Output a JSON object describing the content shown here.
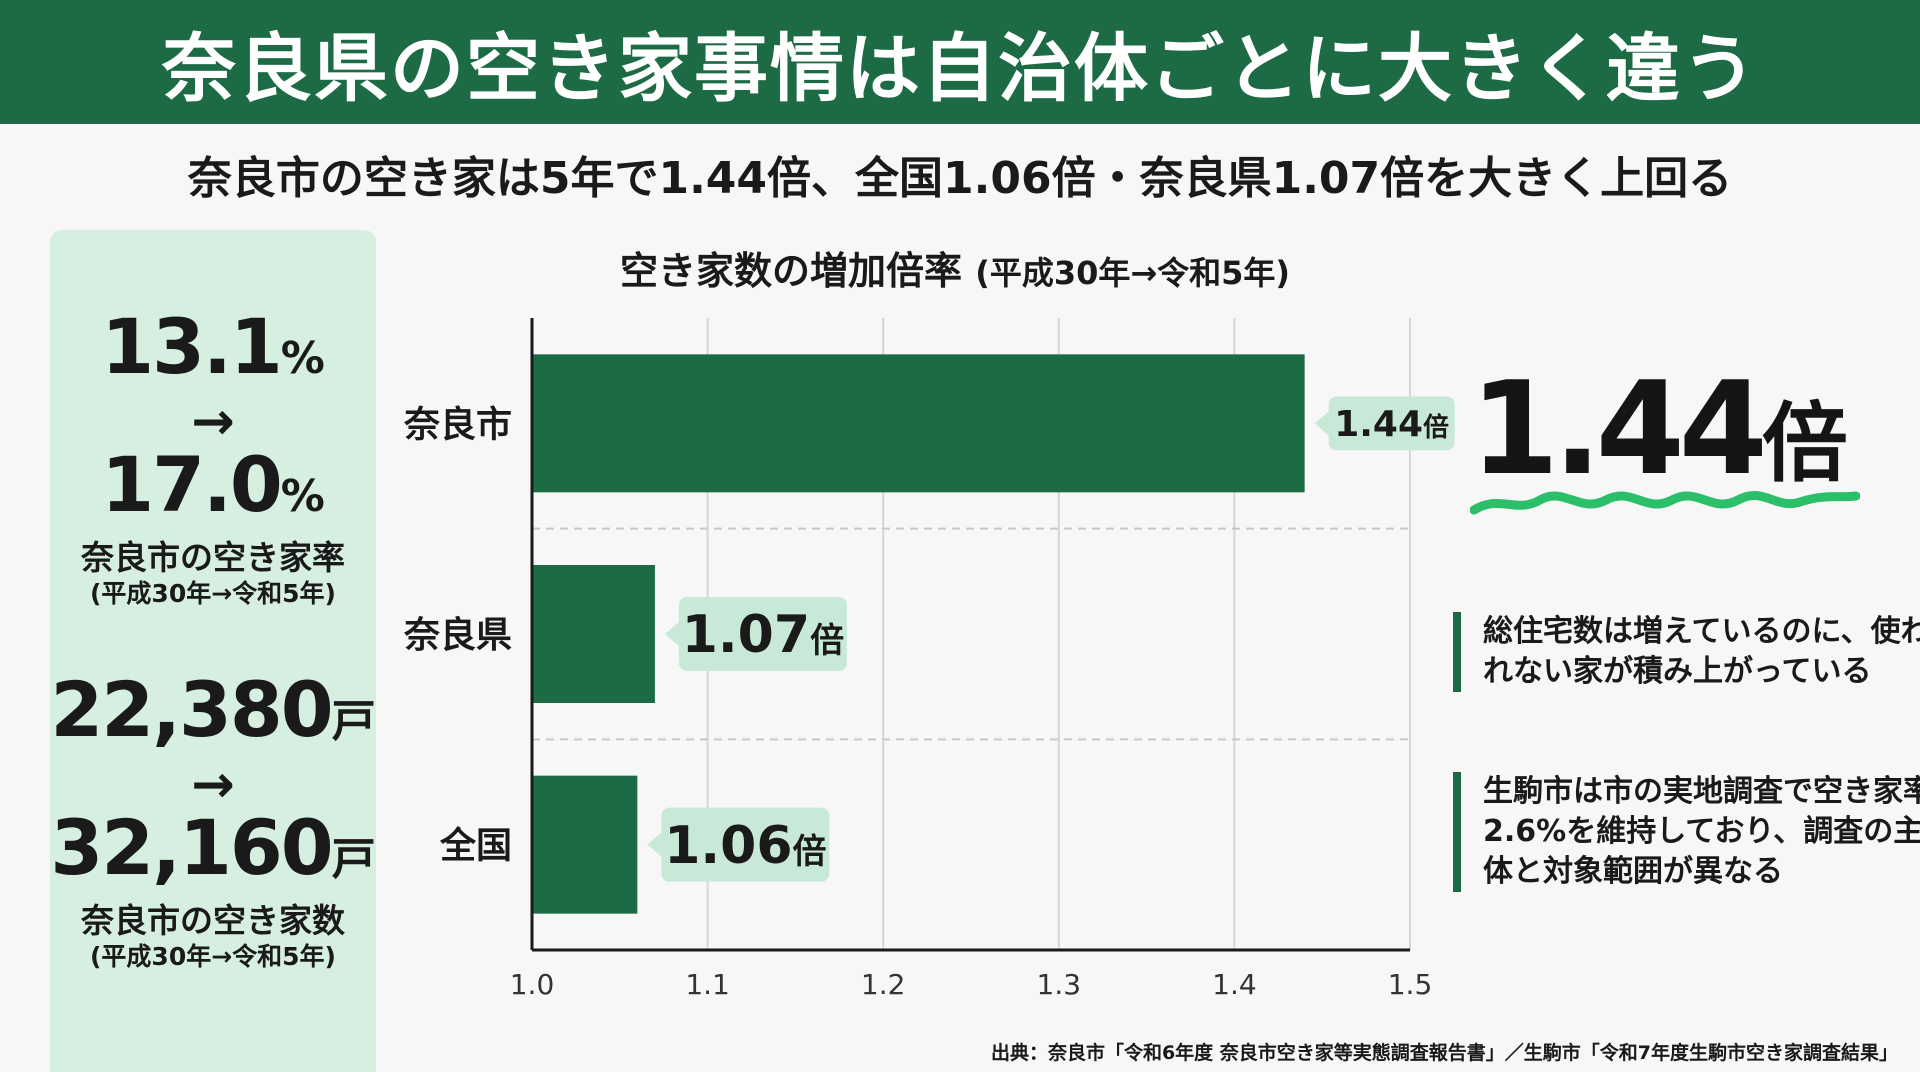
{
  "header": {
    "title": "奈良県の空き家事情は自治体ごとに大きく違う"
  },
  "subtitle": "奈良市の空き家は5年で1.44倍、全国1.06倍・奈良県1.07倍を大きく上回る",
  "sidebar": {
    "block1": {
      "from_value": "13.1",
      "from_unit": "%",
      "arrow": "→",
      "to_value": "17.0",
      "to_unit": "%",
      "label": "奈良市の空き家率",
      "period": "(平成30年→令和5年)"
    },
    "block2": {
      "from_value": "22,380",
      "from_unit": "戸",
      "arrow": "→",
      "to_value": "32,160",
      "to_unit": "戸",
      "label": "奈良市の空き家数",
      "period": "(平成30年→令和5年)"
    }
  },
  "chart_title": {
    "main": "空き家数の増加倍率",
    "period": "(平成30年→令和5年)"
  },
  "chart_data": {
    "type": "bar",
    "orientation": "horizontal",
    "categories": [
      "奈良市",
      "奈良県",
      "全国"
    ],
    "values": [
      1.44,
      1.07,
      1.06
    ],
    "value_labels": [
      "1.44",
      "1.07",
      "1.06"
    ],
    "value_unit": "倍",
    "xlim": [
      1.0,
      1.5
    ],
    "xticks": [
      "1.0",
      "1.1",
      "1.2",
      "1.3",
      "1.4",
      "1.5"
    ],
    "grid": "vertical",
    "colors": {
      "bar": "#1d6b45",
      "label_bg": "#c9e9d8"
    }
  },
  "highlight": {
    "value": "1.44",
    "unit": "倍",
    "accent_color": "#2bbf6a"
  },
  "notes": [
    "総住宅数は増えているのに、使われない家が積み上がっている",
    "生駒市は市の実地調査で空き家率2.6%を維持しており、調査の主体と対象範囲が異なる"
  ],
  "source": "出典：奈良市「令和6年度 奈良市空き家等実態調査報告書」／生駒市「令和7年度生駒市空き家調査結果」"
}
